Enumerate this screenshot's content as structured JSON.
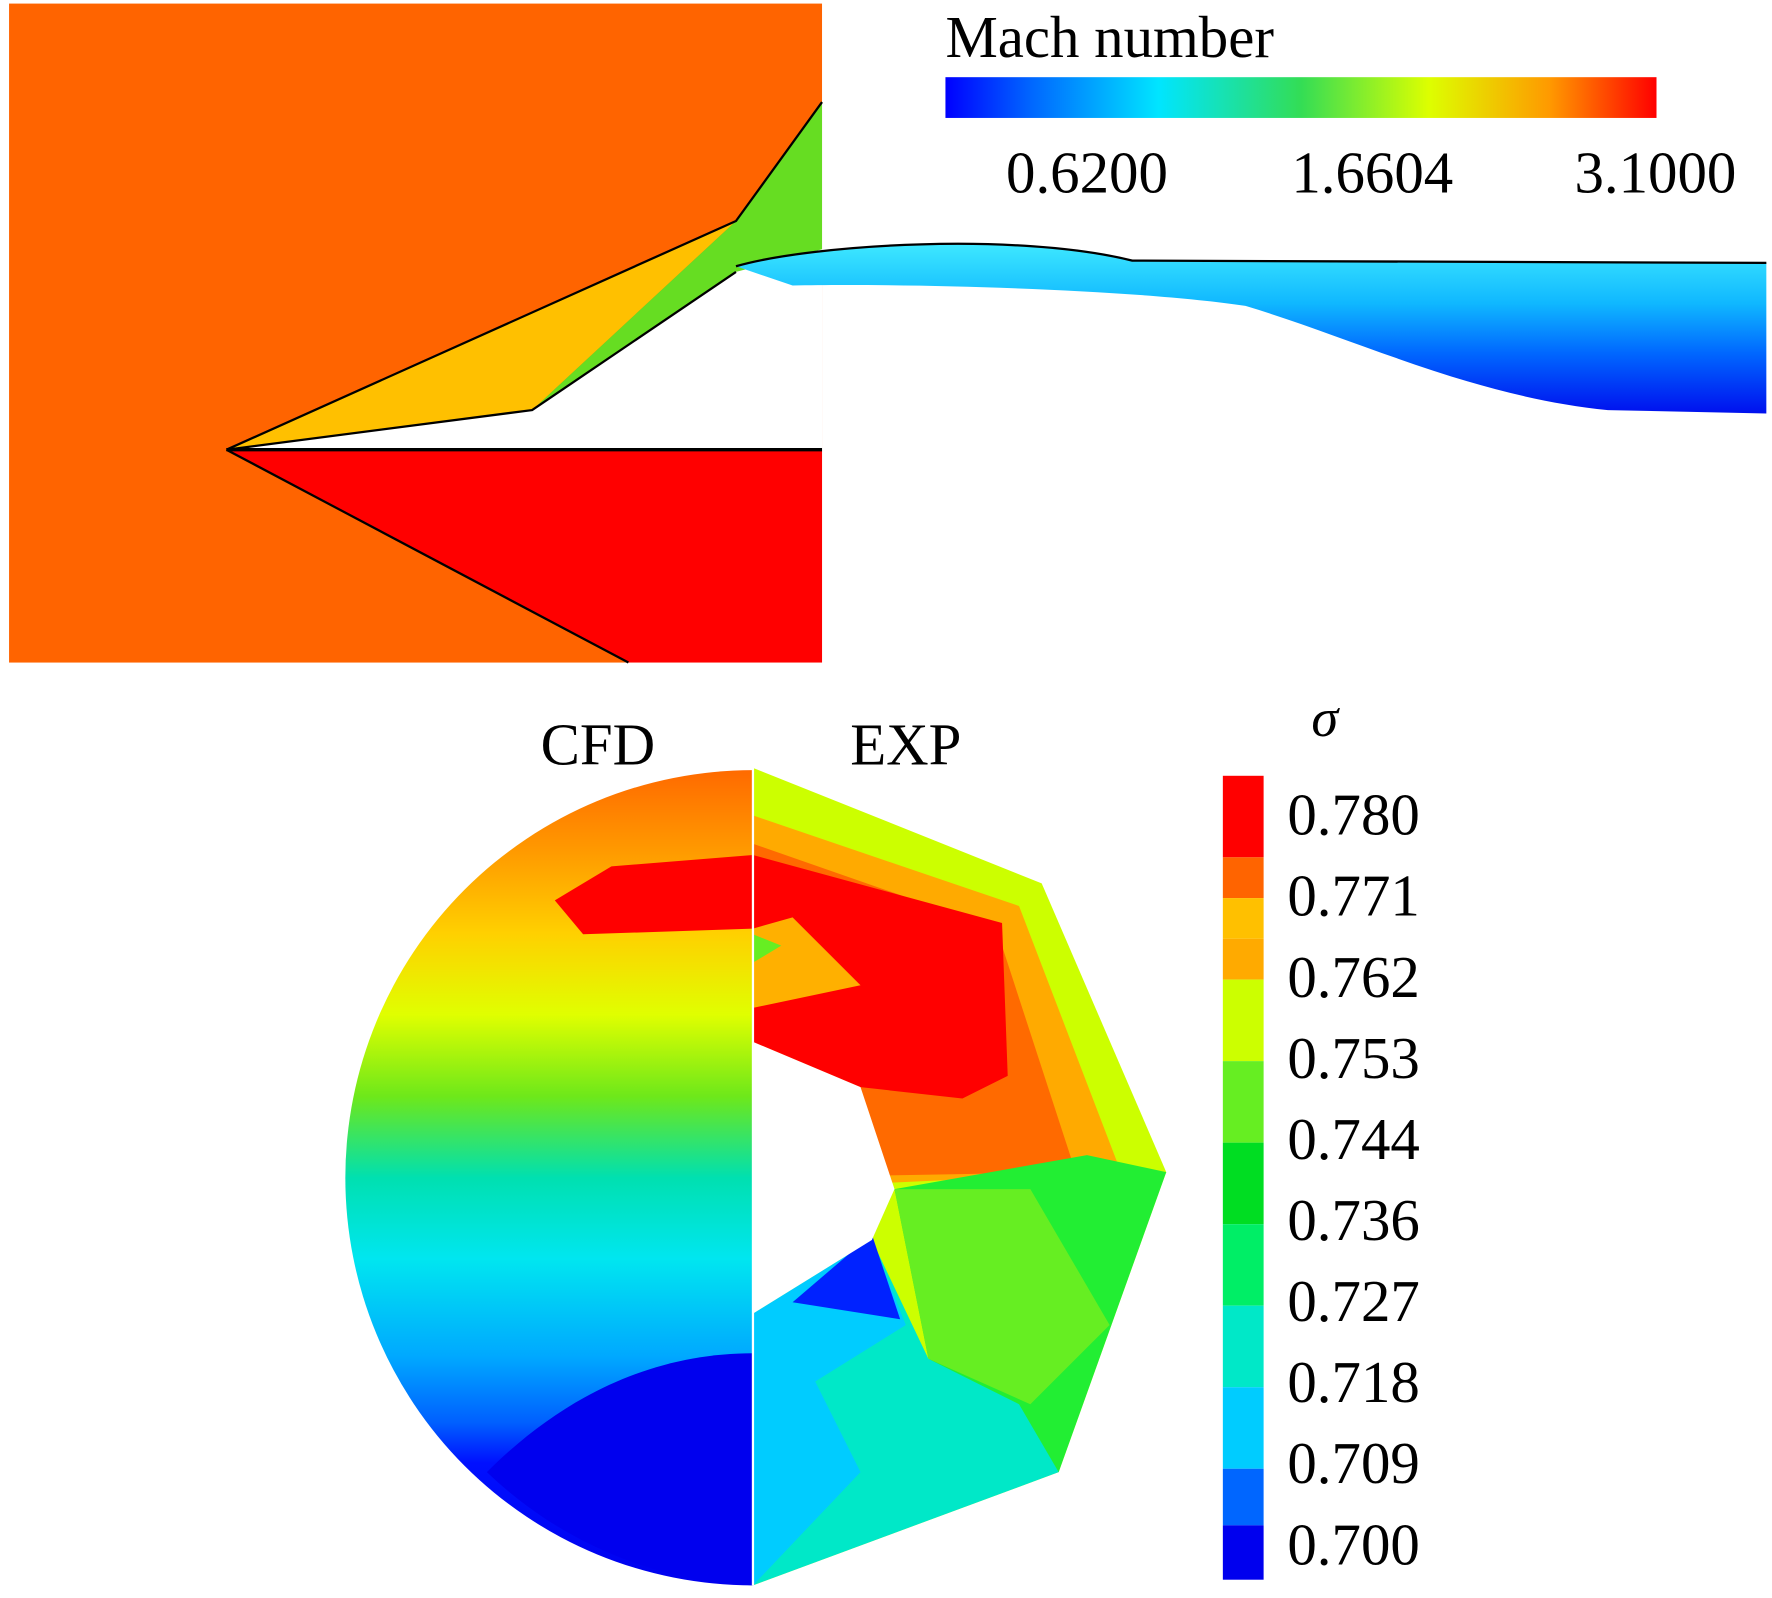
{
  "top_panel": {
    "colorbar": {
      "title": "Mach number",
      "tick_labels": [
        "0.6200",
        "1.6604",
        "3.1000"
      ]
    }
  },
  "bottom_panel": {
    "left_label": "CFD",
    "right_label": "EXP",
    "colorbar": {
      "title": "σ",
      "tick_labels": [
        "0.780",
        "0.771",
        "0.762",
        "0.753",
        "0.744",
        "0.736",
        "0.727",
        "0.718",
        "0.709",
        "0.700"
      ]
    }
  }
}
